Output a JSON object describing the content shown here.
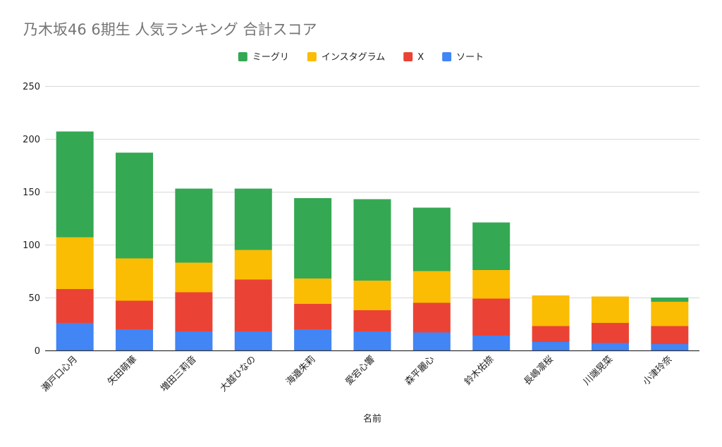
{
  "chart_data": {
    "type": "bar",
    "stacked": true,
    "title": "乃木坂46 6期生 人気ランキング 合計スコア",
    "xlabel": "名前",
    "ylabel": "",
    "ylim": [
      0,
      250
    ],
    "yticks": [
      0,
      50,
      100,
      150,
      200,
      250
    ],
    "grid": true,
    "legend_position": "top",
    "categories": [
      "瀬戸口心月",
      "矢田萌華",
      "増田三莉音",
      "大越ひなの",
      "海邉朱莉",
      "愛宕心響",
      "森平麗心",
      "鈴木佑捺",
      "長嶋凛桜",
      "川端晃菜",
      "小津玲奈"
    ],
    "series": [
      {
        "name": "ソート",
        "color": "#4285f4",
        "values": [
          26,
          20,
          18,
          18,
          20,
          18,
          17,
          14,
          8,
          7,
          6
        ]
      },
      {
        "name": "X",
        "color": "#ea4335",
        "values": [
          32,
          27,
          37,
          49,
          24,
          20,
          28,
          35,
          15,
          19,
          17
        ]
      },
      {
        "name": "インスタグラム",
        "color": "#fbbc04",
        "values": [
          49,
          40,
          28,
          28,
          24,
          28,
          30,
          27,
          29,
          25,
          23
        ]
      },
      {
        "name": "ミーグリ",
        "color": "#34a853",
        "values": [
          100,
          100,
          70,
          58,
          76,
          77,
          60,
          45,
          0,
          0,
          4
        ]
      }
    ],
    "legend_order": [
      "ミーグリ",
      "インスタグラム",
      "X",
      "ソート"
    ]
  }
}
